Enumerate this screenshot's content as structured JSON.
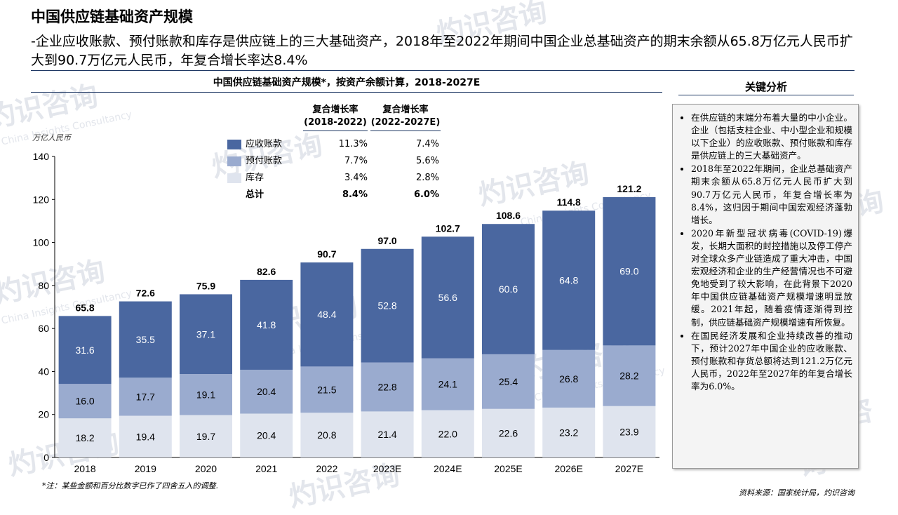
{
  "page": {
    "title": "中国供应链基础资产规模",
    "subtitle": "-企业应收账款、预付账款和库存是供应链上的三大基础资产，2018年至2022年期间中国企业总基础资产的期末余额从65.8万亿元人民币扩大到90.7万亿元人民币，年复合增长率达8.4%",
    "footnote": "*注：某些金额和百分比数字已作了四舍五入的调整.",
    "source": "资料来源：国家统计局，灼识咨询",
    "watermark_cn": "灼识咨询",
    "watermark_en": "China Insights Consultancy",
    "watermark_logo": "CIC"
  },
  "analysis": {
    "title": "关键分析",
    "bullets": [
      "在供应链的末端分布着大量的中小企业。企业（包括支柱企业、中小型企业和规模以下企业）的应收账款、预付账款和库存是供应链上的三大基础资产。",
      "2018年至2022年期间，企业总基础资产期末余额从65.8万亿元人民币扩大到90.7万亿元人民币，年复合增长率为8.4%，这归因于期间中国宏观经济蓬勃增长。",
      "2020年新型冠状病毒(COVID-19)爆发，长期大面积的封控措施以及停工停产对全球众多产业链造成了重大冲击，中国宏观经济和企业的生产经营情况也不可避免地受到了较大影响，在此背景下2020年中国供应链基础资产规模增速明显放缓。2021年起，随着疫情逐渐得到控制，供应链基础资产规模增速有所恢复。",
      "在国民经济发展和企业持续改善的推动下，预计2027年中国企业的应收账款、预付账款和存货总额将达到121.2万亿元人民币，2022年至2027年的年复合增长率为6.0%。"
    ]
  },
  "cagr_table": {
    "headers": [
      "复合增长率\n(2018-2022)",
      "复合增长率\n(2022-2027E)"
    ],
    "rows": [
      {
        "name": "应收账款",
        "c1": "11.3%",
        "c2": "7.4%"
      },
      {
        "name": "预付账款",
        "c1": "7.7%",
        "c2": "5.6%"
      },
      {
        "name": "库存",
        "c1": "3.4%",
        "c2": "2.8%"
      },
      {
        "name": "总计",
        "c1": "8.4%",
        "c2": "6.0%"
      }
    ]
  },
  "chart_data": {
    "type": "bar",
    "stacked": true,
    "title": "中国供应链基础资产规模*，按资产余额计算，2018-2027E",
    "ylabel": "万亿人民币",
    "xlabel": "",
    "ylim": [
      0,
      140
    ],
    "yticks": [
      0,
      20,
      40,
      60,
      80,
      100,
      120,
      140
    ],
    "categories": [
      "2018",
      "2019",
      "2020",
      "2021",
      "2022",
      "2023E",
      "2024E",
      "2025E",
      "2026E",
      "2027E"
    ],
    "series": [
      {
        "name": "库存",
        "color": "#dfe4ee",
        "values": [
          18.2,
          19.4,
          19.7,
          20.4,
          20.8,
          21.4,
          22.0,
          22.6,
          23.2,
          23.9
        ]
      },
      {
        "name": "预付账款",
        "color": "#9aabcf",
        "values": [
          16.0,
          17.7,
          19.1,
          20.4,
          21.5,
          22.8,
          24.1,
          25.4,
          26.8,
          28.2
        ]
      },
      {
        "name": "应收账款",
        "color": "#4a67a0",
        "values": [
          31.6,
          35.5,
          37.1,
          41.8,
          48.4,
          52.8,
          56.6,
          60.6,
          64.8,
          69.0
        ]
      }
    ],
    "totals": [
      "65.8",
      "72.6",
      "75.9",
      "82.6",
      "90.7",
      "97.0",
      "102.7",
      "108.6",
      "114.8",
      "121.2"
    ],
    "grid": false,
    "legend": "top-left inside plot"
  }
}
